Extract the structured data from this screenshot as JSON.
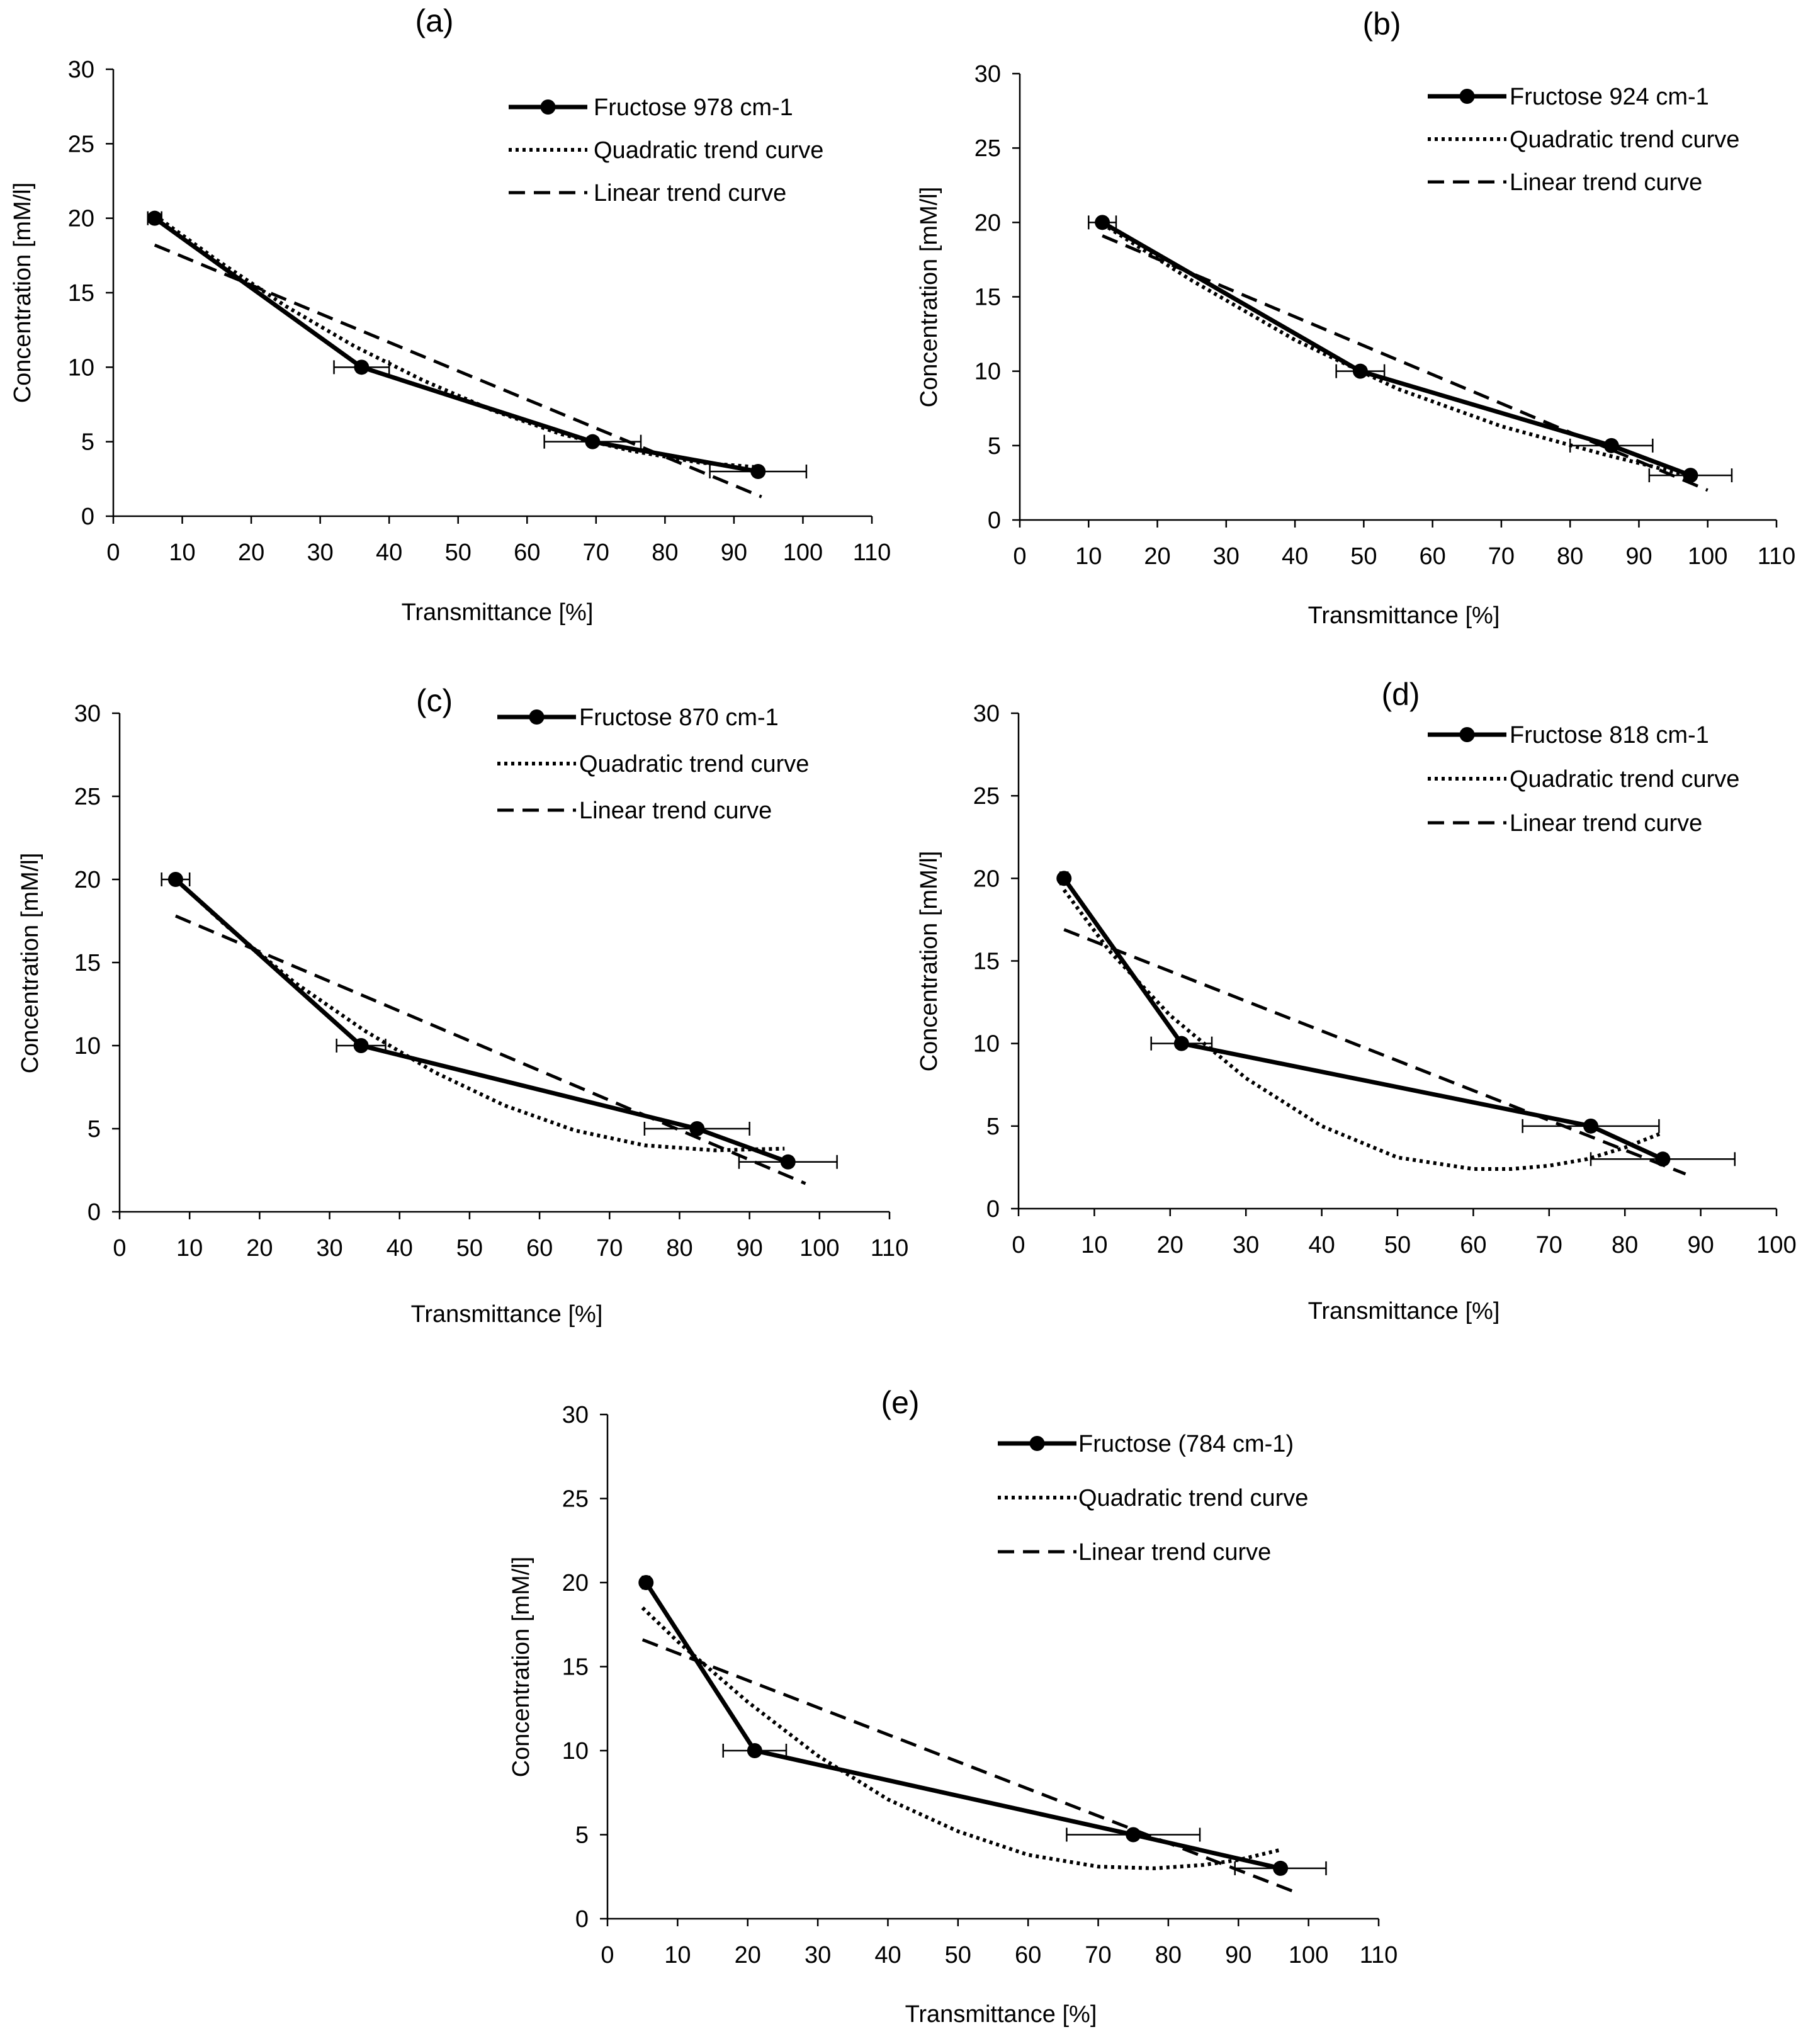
{
  "chart_data": [
    {
      "type": "line",
      "panel_label": "(a)",
      "xlabel": "Transmittance [%]",
      "ylabel": "Concentration [mM/l]",
      "xlim": [
        0,
        110
      ],
      "ylim": [
        0,
        30
      ],
      "xticks": [
        "0",
        "10",
        "20",
        "30",
        "40",
        "50",
        "60",
        "70",
        "80",
        "90",
        "100",
        "110"
      ],
      "yticks": [
        "0",
        "5",
        "10",
        "15",
        "20",
        "25",
        "30"
      ],
      "legend_position": "top-right",
      "series": [
        {
          "name": "Fructose   978 cm-1",
          "style": "solid-marker",
          "x": [
            6,
            36,
            69.5,
            93.5
          ],
          "y": [
            20,
            10,
            5,
            3
          ],
          "xerr": [
            1,
            4,
            7,
            7
          ]
        },
        {
          "name": "Quadratic trend curve",
          "style": "dotted",
          "x": [
            6,
            15,
            25,
            35,
            45,
            55,
            65,
            75,
            85,
            93
          ],
          "y": [
            20.2,
            17.2,
            14.1,
            11.4,
            9.1,
            7.1,
            5.5,
            4.4,
            3.6,
            3.3
          ]
        },
        {
          "name": "Linear trend curve",
          "style": "dashed",
          "x": [
            6,
            94
          ],
          "y": [
            18.2,
            1.3
          ]
        }
      ]
    },
    {
      "type": "line",
      "panel_label": "(b)",
      "xlabel": "Transmittance [%]",
      "ylabel": "Concentration [mM/l]",
      "xlim": [
        0,
        110
      ],
      "ylim": [
        0,
        30
      ],
      "xticks": [
        "0",
        "10",
        "20",
        "30",
        "40",
        "50",
        "60",
        "70",
        "80",
        "90",
        "100",
        "110"
      ],
      "yticks": [
        "0",
        "5",
        "10",
        "15",
        "20",
        "25",
        "30"
      ],
      "legend_position": "top-right",
      "series": [
        {
          "name": "Fructose   924 cm-1",
          "style": "solid-marker",
          "x": [
            12,
            49.5,
            86,
            97.5
          ],
          "y": [
            20,
            10,
            5,
            3
          ],
          "xerr": [
            2,
            3.5,
            6,
            6
          ]
        },
        {
          "name": "Quadratic trend curve",
          "style": "dotted",
          "x": [
            12,
            25,
            40,
            55,
            70,
            85,
            98
          ],
          "y": [
            19.9,
            16.1,
            12.1,
            8.8,
            6.3,
            4.4,
            2.9
          ]
        },
        {
          "name": "Linear trend curve",
          "style": "dashed",
          "x": [
            12,
            100
          ],
          "y": [
            19.1,
            2
          ]
        }
      ]
    },
    {
      "type": "line",
      "panel_label": "(c)",
      "xlabel": "Transmittance [%]",
      "ylabel": "Concentration [mM/l]",
      "xlim": [
        0,
        110
      ],
      "ylim": [
        0,
        30
      ],
      "xticks": [
        "0",
        "10",
        "20",
        "30",
        "40",
        "50",
        "60",
        "70",
        "80",
        "90",
        "100",
        "110"
      ],
      "yticks": [
        "0",
        "5",
        "10",
        "15",
        "20",
        "25",
        "30"
      ],
      "legend_position": "top-right",
      "series": [
        {
          "name": "Fructose   870 cm-1",
          "style": "solid-marker",
          "x": [
            8,
            34.5,
            82.5,
            95.5
          ],
          "y": [
            20,
            10,
            5,
            3
          ],
          "xerr": [
            2,
            3.5,
            7.5,
            7
          ]
        },
        {
          "name": "Quadratic trend curve",
          "style": "dotted",
          "x": [
            8,
            15,
            25,
            35,
            45,
            55,
            65,
            75,
            85,
            95
          ],
          "y": [
            20,
            17.3,
            13.8,
            10.9,
            8.4,
            6.4,
            4.9,
            4,
            3.7,
            3.8
          ]
        },
        {
          "name": "Linear trend curve",
          "style": "dashed",
          "x": [
            8,
            98
          ],
          "y": [
            17.8,
            1.7
          ]
        }
      ]
    },
    {
      "type": "line",
      "panel_label": "(d)",
      "xlabel": "Transmittance [%]",
      "ylabel": "Concentration [mM/l]",
      "xlim": [
        0,
        100
      ],
      "ylim": [
        0,
        30
      ],
      "xticks": [
        "0",
        "10",
        "20",
        "30",
        "40",
        "50",
        "60",
        "70",
        "80",
        "90",
        "100"
      ],
      "yticks": [
        "0",
        "5",
        "10",
        "15",
        "20",
        "25",
        "30"
      ],
      "legend_position": "top-right",
      "series": [
        {
          "name": "Fructose   818 cm-1",
          "style": "solid-marker",
          "x": [
            6,
            21.5,
            75.5,
            85
          ],
          "y": [
            20,
            10,
            5,
            3
          ],
          "xerr": [
            0.5,
            4,
            9,
            9.5
          ]
        },
        {
          "name": "Quadratic trend curve",
          "style": "dotted",
          "x": [
            6,
            12,
            20,
            30,
            40,
            50,
            60,
            65,
            70,
            75,
            80,
            85
          ],
          "y": [
            19.3,
            15.6,
            11.7,
            7.9,
            5,
            3.1,
            2.4,
            2.4,
            2.6,
            3,
            3.7,
            4.6
          ]
        },
        {
          "name": "Linear trend curve",
          "style": "dashed",
          "x": [
            6,
            88
          ],
          "y": [
            16.9,
            2.1
          ]
        }
      ]
    },
    {
      "type": "line",
      "panel_label": "(e)",
      "xlabel": "Transmittance [%]",
      "ylabel": "Concentration [mM/l]",
      "xlim": [
        0,
        110
      ],
      "ylim": [
        0,
        30
      ],
      "xticks": [
        "0",
        "10",
        "20",
        "30",
        "40",
        "50",
        "60",
        "70",
        "80",
        "90",
        "100",
        "110"
      ],
      "yticks": [
        "0",
        "5",
        "10",
        "15",
        "20",
        "25",
        "30"
      ],
      "legend_position": "top-right",
      "series": [
        {
          "name": "Fructose (784 cm-1)",
          "style": "solid-marker",
          "x": [
            5.5,
            21,
            75,
            96
          ],
          "y": [
            20,
            10,
            5,
            3
          ],
          "xerr": [
            0.5,
            4.5,
            9.5,
            6.5
          ]
        },
        {
          "name": "Quadratic trend curve",
          "style": "dotted",
          "x": [
            5,
            10,
            20,
            30,
            40,
            50,
            60,
            70,
            78,
            85,
            90,
            96
          ],
          "y": [
            18.5,
            16.5,
            12.9,
            9.7,
            7.1,
            5.2,
            3.8,
            3.1,
            3,
            3.2,
            3.5,
            4.1
          ]
        },
        {
          "name": "Linear trend curve",
          "style": "dashed",
          "x": [
            5,
            98
          ],
          "y": [
            16.6,
            1.6
          ]
        }
      ]
    }
  ]
}
